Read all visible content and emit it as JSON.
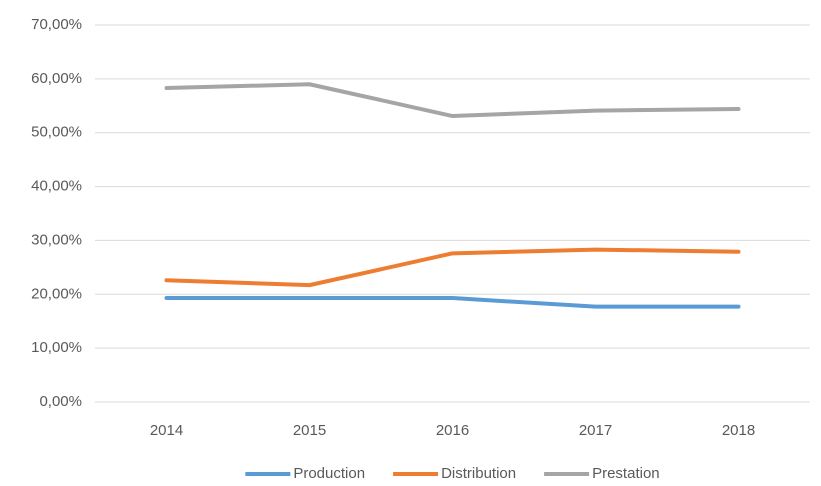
{
  "chart_data": {
    "type": "line",
    "categories": [
      "2014",
      "2015",
      "2016",
      "2017",
      "2018"
    ],
    "series": [
      {
        "name": "Production",
        "color": "#5b9bd5",
        "values": [
          19.3,
          19.3,
          19.3,
          17.7,
          17.7
        ]
      },
      {
        "name": "Distribution",
        "color": "#ed7d31",
        "values": [
          22.6,
          21.7,
          27.6,
          28.3,
          27.9
        ]
      },
      {
        "name": "Prestation",
        "color": "#a5a5a5",
        "values": [
          58.3,
          59.0,
          53.1,
          54.1,
          54.4
        ]
      }
    ],
    "ylim": [
      0,
      70
    ],
    "yticks": [
      {
        "value": 0,
        "label": "0,00%"
      },
      {
        "value": 10,
        "label": "10,00%"
      },
      {
        "value": 20,
        "label": "20,00%"
      },
      {
        "value": 30,
        "label": "30,00%"
      },
      {
        "value": 40,
        "label": "40,00%"
      },
      {
        "value": 50,
        "label": "50,00%"
      },
      {
        "value": 60,
        "label": "60,00%"
      },
      {
        "value": 70,
        "label": "70,00%"
      }
    ],
    "grid": true,
    "legend": "bottom"
  }
}
